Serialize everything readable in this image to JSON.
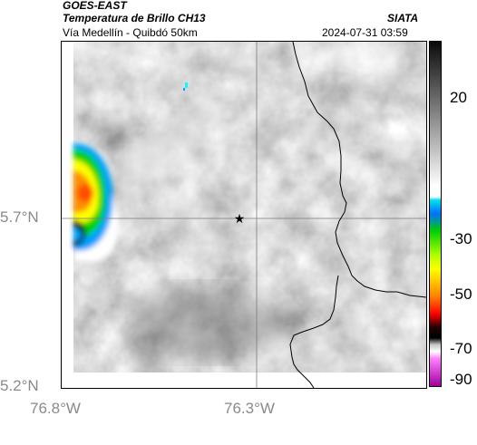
{
  "header": {
    "satellite": "GOES-EAST",
    "product": "Temperatura de Brillo CH13",
    "location": "Vía Medellín - Quibdó 50km",
    "brand": "SIATA",
    "timestamp": "2024-07-31 03:59"
  },
  "axes": {
    "lat_ticks": [
      "5.7°N",
      "5.2°N"
    ],
    "lon_ticks": [
      "76.8°W",
      "76.3°W"
    ]
  },
  "colorbar": {
    "ticks": [
      "20",
      "-30",
      "-50",
      "-70",
      "-90"
    ],
    "colors": [
      "#1a1a1a",
      "#ffffff",
      "#00c8d8",
      "#00a0ff",
      "#00d000",
      "#ffff00",
      "#ff5000",
      "#000000",
      "#e000e0"
    ]
  },
  "map": {
    "marker": "star-icon",
    "background_gray": "#909090",
    "storm_colors": [
      "#ffffff",
      "#00a0ff",
      "#00d000",
      "#ffff00",
      "#ff9000",
      "#ff5000"
    ]
  }
}
